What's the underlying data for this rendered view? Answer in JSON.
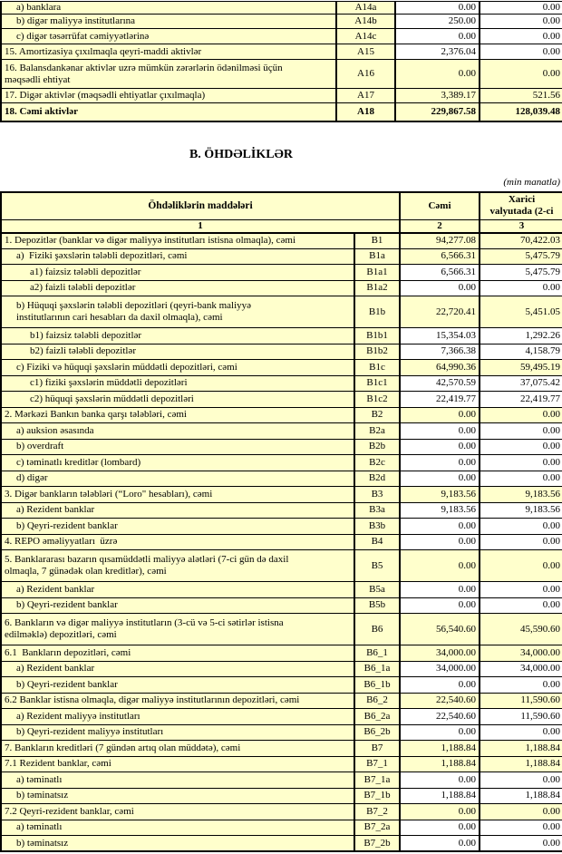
{
  "section_title": "B. ÖHDƏLİKLƏR",
  "unit_note": "(min manatla)",
  "colors": {
    "cell_fill": "#FFFFCC",
    "input_cell_fill": "#FFFFFF",
    "border": "#000000",
    "text": "#000000"
  },
  "assets_table": {
    "rows": [
      {
        "text": "a) banklara",
        "code": "A14a",
        "total": "0.00",
        "foreign": "0.00",
        "indent": 1,
        "input": true
      },
      {
        "text": "b) digər maliyyə institutlarına",
        "code": "A14b",
        "total": "250.00",
        "foreign": "0.00",
        "indent": 1,
        "input": true
      },
      {
        "text": "c) digər təsərrüfat cəmiyyətlərinə",
        "code": "A14c",
        "total": "0.00",
        "foreign": "0.00",
        "indent": 1,
        "input": true
      },
      {
        "text": "15. Amortizasiya çıxılmaqla qeyri-maddi aktivlər",
        "code": "A15",
        "total": "2,376.04",
        "foreign": "0.00",
        "indent": 0,
        "input": true
      },
      {
        "text": "16. Balansdankənar aktivlər uzrə mümkün zərərlərin ödənilməsi üçün\nməqsədli ehtiyat",
        "code": "A16",
        "total": "0.00",
        "foreign": "0.00",
        "indent": 0,
        "lines": 2
      },
      {
        "text": "17. Digər aktivlər (məqsədli ehtiyatlar çıxılmaqla)",
        "code": "A17",
        "total": "3,389.17",
        "foreign": "521.56",
        "indent": 0
      },
      {
        "text": "18. Cəmi aktivlər",
        "code": "A18",
        "total": "229,867.58",
        "foreign": "128,039.48",
        "indent": 0,
        "bold": true
      }
    ]
  },
  "liabilities_table": {
    "header": {
      "items": "Öhdəliklərin maddələri",
      "total": "Cəmi",
      "foreign": "Xarici\nvalyutada (2-ci",
      "num1": "1",
      "num2": "2",
      "num3": "3"
    },
    "rows": [
      {
        "text": "1. Depozitlər (banklar və digər maliyyə institutları istisna olmaqla), cəmi",
        "code": "B1",
        "total": "94,277.08",
        "foreign": "70,422.03",
        "indent": 0
      },
      {
        "text": "a)  Fiziki şəxslərin tələbli depozitləri, cəmi",
        "code": "B1a",
        "total": "6,566.31",
        "foreign": "5,475.79",
        "indent": 1
      },
      {
        "text": "a1) faizsiz tələbli depozitlər",
        "code": "B1a1",
        "total": "6,566.31",
        "foreign": "5,475.79",
        "indent": 2,
        "input": true
      },
      {
        "text": "a2) faizli tələbli depozitlər",
        "code": "B1a2",
        "total": "0.00",
        "foreign": "0.00",
        "indent": 2,
        "input": true
      },
      {
        "text": "b) Hüquqi şəxslərin tələbli depozitləri (qeyri-bank maliyyə\ninstitutlarının cari hesabları da daxil olmaqla), cəmi",
        "code": "B1b",
        "total": "22,720.41",
        "foreign": "5,451.05",
        "indent": 1,
        "lines": 2
      },
      {
        "text": "b1) faizsiz tələbli depozitlər",
        "code": "B1b1",
        "total": "15,354.03",
        "foreign": "1,292.26",
        "indent": 2,
        "input": true
      },
      {
        "text": "b2) faizli tələbli depozitlər",
        "code": "B1b2",
        "total": "7,366.38",
        "foreign": "4,158.79",
        "indent": 2,
        "input": true
      },
      {
        "text": "c) Fiziki və hüquqi şəxslərin müddətli depozitləri, cəmi",
        "code": "B1c",
        "total": "64,990.36",
        "foreign": "59,495.19",
        "indent": 1
      },
      {
        "text": "c1) fiziki şəxslərin müddətli depozitləri",
        "code": "B1c1",
        "total": "42,570.59",
        "foreign": "37,075.42",
        "indent": 2,
        "input": true
      },
      {
        "text": "c2) hüquqi şəxslərin müddətli depozitləri",
        "code": "B1c2",
        "total": "22,419.77",
        "foreign": "22,419.77",
        "indent": 2,
        "input": true
      },
      {
        "text": "2. Mərkəzi Bankın banka qarşı tələbləri, cəmi",
        "code": "B2",
        "total": "0.00",
        "foreign": "0.00",
        "indent": 0
      },
      {
        "text": "a) auksion əsasında",
        "code": "B2a",
        "total": "0.00",
        "foreign": "0.00",
        "indent": 1,
        "input": true
      },
      {
        "text": "b) overdraft",
        "code": "B2b",
        "total": "0.00",
        "foreign": "0.00",
        "indent": 1,
        "input": true
      },
      {
        "text": "c) təminatlı kreditlər (lombard)",
        "code": "B2c",
        "total": "0.00",
        "foreign": "0.00",
        "indent": 1,
        "input": true
      },
      {
        "text": "d) digər",
        "code": "B2d",
        "total": "0.00",
        "foreign": "0.00",
        "indent": 1,
        "input": true
      },
      {
        "text": "3. Digər bankların tələbləri (“Loro\" hesabları), cəmi",
        "code": "B3",
        "total": "9,183.56",
        "foreign": "9,183.56",
        "indent": 0
      },
      {
        "text": "a) Rezident banklar",
        "code": "B3a",
        "total": "9,183.56",
        "foreign": "9,183.56",
        "indent": 1,
        "input": true
      },
      {
        "text": "b) Qeyri-rezident banklar",
        "code": "B3b",
        "total": "0.00",
        "foreign": "0.00",
        "indent": 1,
        "input": true
      },
      {
        "text": "4. REPO əməliyyatları  üzrə",
        "code": "B4",
        "total": "0.00",
        "foreign": "0.00",
        "indent": 0,
        "input": true
      },
      {
        "text": "5. Banklararası bazarın qısamüddətli maliyyə alətləri (7-ci gün də daxil\nolmaqla, 7 günədək olan kreditlər), cəmi",
        "code": "B5",
        "total": "0.00",
        "foreign": "0.00",
        "indent": 0,
        "lines": 2
      },
      {
        "text": "a) Rezident banklar",
        "code": "B5a",
        "total": "0.00",
        "foreign": "0.00",
        "indent": 1,
        "input": true
      },
      {
        "text": "b) Qeyri-rezident banklar",
        "code": "B5b",
        "total": "0.00",
        "foreign": "0.00",
        "indent": 1,
        "input": true
      },
      {
        "text": "6. Bankların və digər maliyyə institutların (3-cü və 5-ci sətirlər istisna\nedilməklə) depozitləri, cəmi",
        "code": "B6",
        "total": "56,540.60",
        "foreign": "45,590.60",
        "indent": 0,
        "lines": 2
      },
      {
        "text": "6.1  Bankların depozitləri, cəmi",
        "code": "B6_1",
        "total": "34,000.00",
        "foreign": "34,000.00",
        "indent": 0
      },
      {
        "text": "a) Rezident banklar",
        "code": "B6_1a",
        "total": "34,000.00",
        "foreign": "34,000.00",
        "indent": 1,
        "input": true
      },
      {
        "text": "b) Qeyri-rezident banklar",
        "code": "B6_1b",
        "total": "0.00",
        "foreign": "0.00",
        "indent": 1,
        "input": true
      },
      {
        "text": "6.2 Banklar istisna olmaqla, digər maliyyə institutlarının depozitləri, cəmi",
        "code": "B6_2",
        "total": "22,540.60",
        "foreign": "11,590.60",
        "indent": 0
      },
      {
        "text": "a) Rezident maliyyə institutları",
        "code": "B6_2a",
        "total": "22,540.60",
        "foreign": "11,590.60",
        "indent": 1,
        "input": true
      },
      {
        "text": "b) Qeyri-rezident maliyyə institutları",
        "code": "B6_2b",
        "total": "0.00",
        "foreign": "0.00",
        "indent": 1,
        "input": true
      },
      {
        "text": "7. Bankların kreditləri (7 gündən artıq olan müddətə), cəmi",
        "code": "B7",
        "total": "1,188.84",
        "foreign": "1,188.84",
        "indent": 0
      },
      {
        "text": "7.1 Rezident banklar, cəmi",
        "code": "B7_1",
        "total": "1,188.84",
        "foreign": "1,188.84",
        "indent": 0
      },
      {
        "text": "a) təminatlı",
        "code": "B7_1a",
        "total": "0.00",
        "foreign": "0.00",
        "indent": 1,
        "input": true
      },
      {
        "text": "b) təminatsız",
        "code": "B7_1b",
        "total": "1,188.84",
        "foreign": "1,188.84",
        "indent": 1,
        "input": true
      },
      {
        "text": "7.2 Qeyri-rezident banklar, cəmi",
        "code": "B7_2",
        "total": "0.00",
        "foreign": "0.00",
        "indent": 0
      },
      {
        "text": "a) təminatlı",
        "code": "B7_2a",
        "total": "0.00",
        "foreign": "0.00",
        "indent": 1,
        "input": true
      },
      {
        "text": "b) təminatsız",
        "code": "B7_2b",
        "total": "0.00",
        "foreign": "0.00",
        "indent": 1,
        "input": true
      }
    ]
  }
}
